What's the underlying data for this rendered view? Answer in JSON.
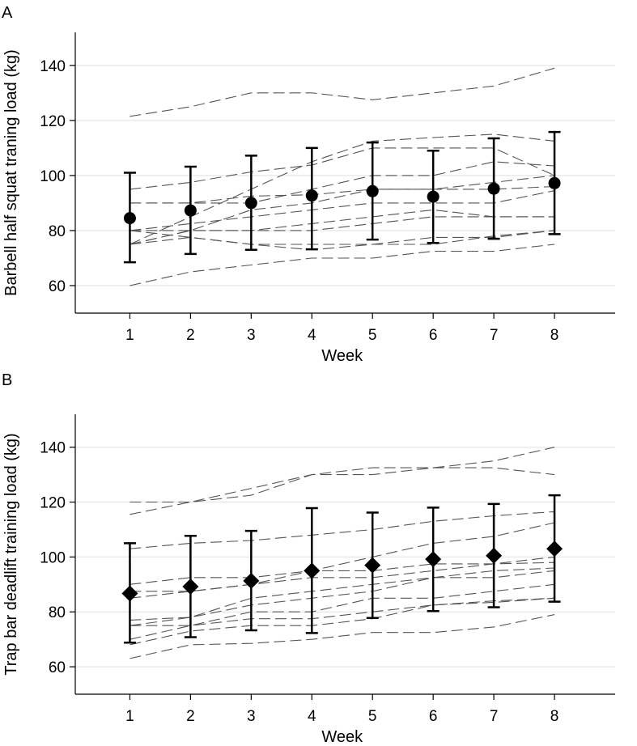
{
  "chart_data": [
    {
      "panel": "A",
      "type": "line",
      "xlabel": "Week",
      "ylabel": "Barbell half squat traning load (kg)",
      "x": [
        1,
        2,
        3,
        4,
        5,
        6,
        7,
        8
      ],
      "xlim": [
        0.1,
        9.0
      ],
      "ylim": [
        50,
        152
      ],
      "yticks": [
        60,
        80,
        100,
        120,
        140
      ],
      "marker": "circle",
      "mean": [
        84.5,
        87.3,
        90.0,
        92.7,
        94.3,
        92.3,
        95.2,
        97.2
      ],
      "error_low": [
        68.5,
        71.5,
        73.0,
        73.2,
        76.7,
        75.5,
        77.0,
        78.7
      ],
      "error_high": [
        101.0,
        103.2,
        107.2,
        110.0,
        112.0,
        109.0,
        113.5,
        115.8
      ],
      "individuals": [
        [
          121.5,
          125.0,
          130.0,
          130.0,
          127.5,
          130.0,
          132.5,
          139.0
        ],
        [
          75.0,
          85.0,
          95.0,
          105.0,
          112.5,
          113.8,
          115.0,
          112.5
        ],
        [
          95.0,
          97.5,
          101.3,
          103.8,
          110.0,
          110.0,
          110.0,
          100.0
        ],
        [
          90.0,
          90.0,
          90.0,
          95.0,
          100.0,
          100.0,
          105.0,
          103.5
        ],
        [
          90.0,
          90.0,
          92.5,
          93.0,
          95.0,
          95.0,
          97.5,
          100.0
        ],
        [
          75.0,
          80.0,
          87.5,
          90.0,
          95.0,
          95.0,
          95.0,
          96.0
        ],
        [
          80.0,
          82.5,
          85.0,
          87.5,
          90.0,
          90.0,
          90.0,
          94.5
        ],
        [
          80.0,
          80.0,
          80.0,
          82.5,
          85.0,
          87.5,
          85.0,
          85.0
        ],
        [
          75.0,
          80.0,
          80.0,
          80.0,
          82.5,
          85.0,
          85.0,
          85.0
        ],
        [
          75.0,
          77.5,
          75.0,
          75.0,
          75.0,
          77.5,
          77.5,
          80.0
        ],
        [
          80.0,
          77.5,
          75.0,
          73.0,
          75.0,
          75.0,
          78.0,
          80.0
        ],
        [
          60.0,
          65.0,
          67.5,
          70.0,
          70.0,
          72.5,
          72.5,
          75.0
        ]
      ]
    },
    {
      "panel": "B",
      "type": "line",
      "xlabel": "Week",
      "ylabel": "Trap bar deadlift training load (kg)",
      "x": [
        1,
        2,
        3,
        4,
        5,
        6,
        7,
        8
      ],
      "xlim": [
        0.1,
        9.0
      ],
      "ylim": [
        50,
        152
      ],
      "yticks": [
        60,
        80,
        100,
        120,
        140
      ],
      "marker": "diamond",
      "mean": [
        86.7,
        89.2,
        91.3,
        95.0,
        97.0,
        99.2,
        100.5,
        103.0
      ],
      "error_low": [
        68.8,
        70.8,
        73.3,
        72.3,
        77.8,
        80.3,
        81.7,
        83.7
      ],
      "error_high": [
        105.0,
        107.7,
        109.5,
        117.8,
        116.2,
        118.0,
        119.3,
        122.5
      ],
      "individuals": [
        [
          120.0,
          120.0,
          122.5,
          130.0,
          130.0,
          132.5,
          135.0,
          140.0
        ],
        [
          115.5,
          120.0,
          125.0,
          130.0,
          132.5,
          132.5,
          132.5,
          130.0
        ],
        [
          103.0,
          105.0,
          106.0,
          108.0,
          110.0,
          113.0,
          115.0,
          116.5
        ],
        [
          90.0,
          92.5,
          92.5,
          95.0,
          100.0,
          105.0,
          107.5,
          112.5
        ],
        [
          87.5,
          87.5,
          90.0,
          95.0,
          95.0,
          97.5,
          97.5,
          100.0
        ],
        [
          85.0,
          87.5,
          90.0,
          92.5,
          92.5,
          95.0,
          97.5,
          98.0
        ],
        [
          75.0,
          78.0,
          85.0,
          87.5,
          90.0,
          92.5,
          95.0,
          96.0
        ],
        [
          77.0,
          78.0,
          82.5,
          85.0,
          87.5,
          92.5,
          92.5,
          95.0
        ],
        [
          70.0,
          75.0,
          80.0,
          80.0,
          85.0,
          85.0,
          87.5,
          90.0
        ],
        [
          75.0,
          75.0,
          77.5,
          77.5,
          80.0,
          82.5,
          84.0,
          85.0
        ],
        [
          68.0,
          73.0,
          75.0,
          75.0,
          77.5,
          82.5,
          83.5,
          85.0
        ],
        [
          63.0,
          68.0,
          68.5,
          70.0,
          72.5,
          72.5,
          74.5,
          79.0
        ]
      ]
    }
  ]
}
